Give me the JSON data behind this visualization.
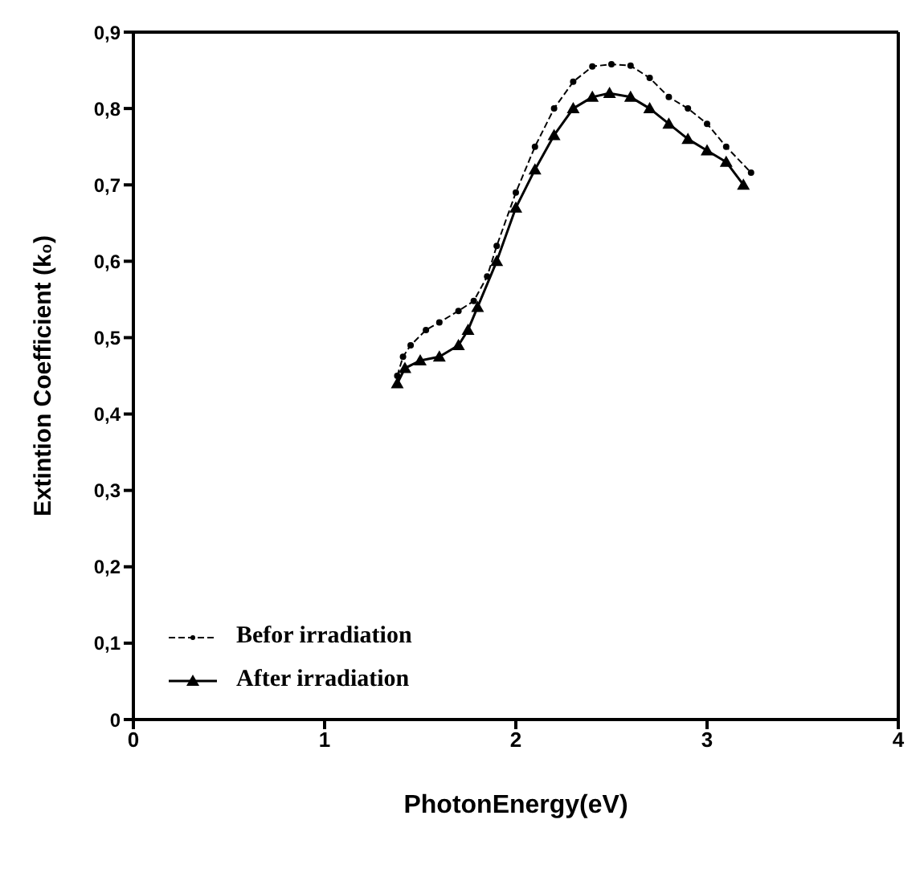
{
  "chart_data": {
    "type": "line",
    "xlabel": "PhotonEnergy(eV)",
    "ylabel": "Extintion Coefficient (k₀)",
    "xlim": [
      0,
      4
    ],
    "xticks": [
      0,
      1,
      2,
      3,
      4
    ],
    "ylim": [
      0,
      0.9
    ],
    "yticks": [
      {
        "value": 0,
        "label": "0"
      },
      {
        "value": 0.1,
        "label": "0,1"
      },
      {
        "value": 0.2,
        "label": "0,2"
      },
      {
        "value": 0.3,
        "label": "0,3"
      },
      {
        "value": 0.4,
        "label": "0,4"
      },
      {
        "value": 0.5,
        "label": "0,5"
      },
      {
        "value": 0.6,
        "label": "0,6"
      },
      {
        "value": 0.7,
        "label": "0,7"
      },
      {
        "value": 0.8,
        "label": "0,8"
      },
      {
        "value": 0.9,
        "label": "0,9"
      }
    ],
    "grid": false,
    "legend": "bottom left",
    "series": [
      {
        "name": "Befor irradiation",
        "color": "#000000",
        "marker": "circle",
        "line_style": "dashed",
        "x": [
          1.38,
          1.41,
          1.45,
          1.53,
          1.6,
          1.7,
          1.78,
          1.85,
          1.9,
          2.0,
          2.1,
          2.2,
          2.3,
          2.4,
          2.5,
          2.6,
          2.7,
          2.8,
          2.9,
          3.0,
          3.1,
          3.23
        ],
        "values": [
          0.45,
          0.475,
          0.49,
          0.51,
          0.52,
          0.535,
          0.548,
          0.58,
          0.62,
          0.69,
          0.75,
          0.8,
          0.835,
          0.855,
          0.858,
          0.856,
          0.84,
          0.815,
          0.8,
          0.78,
          0.75,
          0.716
        ]
      },
      {
        "name": "After irradiation",
        "color": "#000000",
        "marker": "triangle",
        "line_style": "solid",
        "x": [
          1.38,
          1.42,
          1.5,
          1.6,
          1.7,
          1.75,
          1.8,
          1.9,
          2.0,
          2.1,
          2.2,
          2.3,
          2.4,
          2.49,
          2.6,
          2.7,
          2.8,
          2.9,
          3.0,
          3.1,
          3.19
        ],
        "values": [
          0.44,
          0.46,
          0.47,
          0.475,
          0.49,
          0.51,
          0.54,
          0.6,
          0.67,
          0.72,
          0.765,
          0.8,
          0.815,
          0.82,
          0.815,
          0.8,
          0.78,
          0.76,
          0.745,
          0.73,
          0.7
        ]
      }
    ]
  }
}
